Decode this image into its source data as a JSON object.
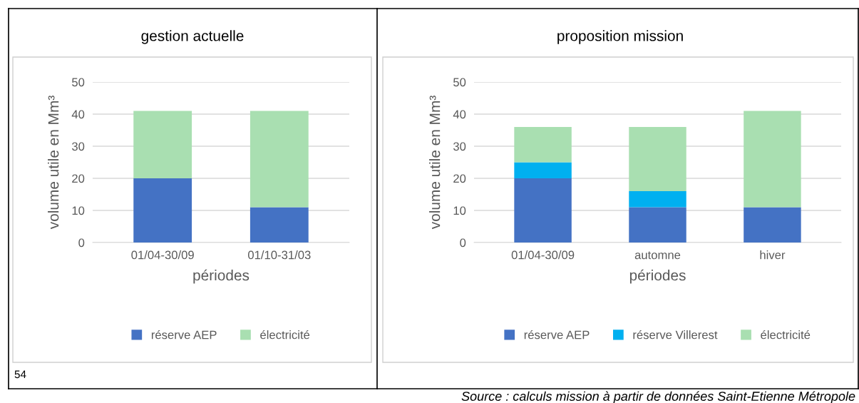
{
  "chart_data": [
    {
      "type": "bar",
      "title": "gestion actuelle",
      "xlabel": "périodes",
      "ylabel": "volume utile en Mm³",
      "categories": [
        "01/04-30/09",
        "01/10-31/03"
      ],
      "stacked": true,
      "ylim": [
        0,
        50
      ],
      "yticks": [
        0,
        10,
        20,
        30,
        40,
        50
      ],
      "grid": "y",
      "legend": "bottom",
      "series": [
        {
          "name": "réserve AEP",
          "color": "#4472c4",
          "values": [
            20,
            11
          ]
        },
        {
          "name": "électricité",
          "color": "#a9dfb1",
          "values": [
            21,
            30
          ]
        }
      ],
      "annotations": [
        "54"
      ]
    },
    {
      "type": "bar",
      "title": "proposition mission",
      "xlabel": "périodes",
      "ylabel": "volume utile en Mm³",
      "categories": [
        "01/04-30/09",
        "automne",
        "hiver"
      ],
      "stacked": true,
      "ylim": [
        0,
        50
      ],
      "yticks": [
        0,
        10,
        20,
        30,
        40,
        50
      ],
      "grid": "y",
      "legend": "bottom",
      "series": [
        {
          "name": "réserve AEP",
          "color": "#4472c4",
          "values": [
            20,
            11,
            11
          ]
        },
        {
          "name": "réserve Villerest",
          "color": "#00b0f0",
          "values": [
            5,
            5,
            null
          ]
        },
        {
          "name": "électricité",
          "color": "#a9dfb1",
          "values": [
            11,
            20,
            30
          ]
        }
      ],
      "annotations": [
        "Source : calculs mission à partir de données Saint-Etienne Métropole"
      ]
    }
  ]
}
